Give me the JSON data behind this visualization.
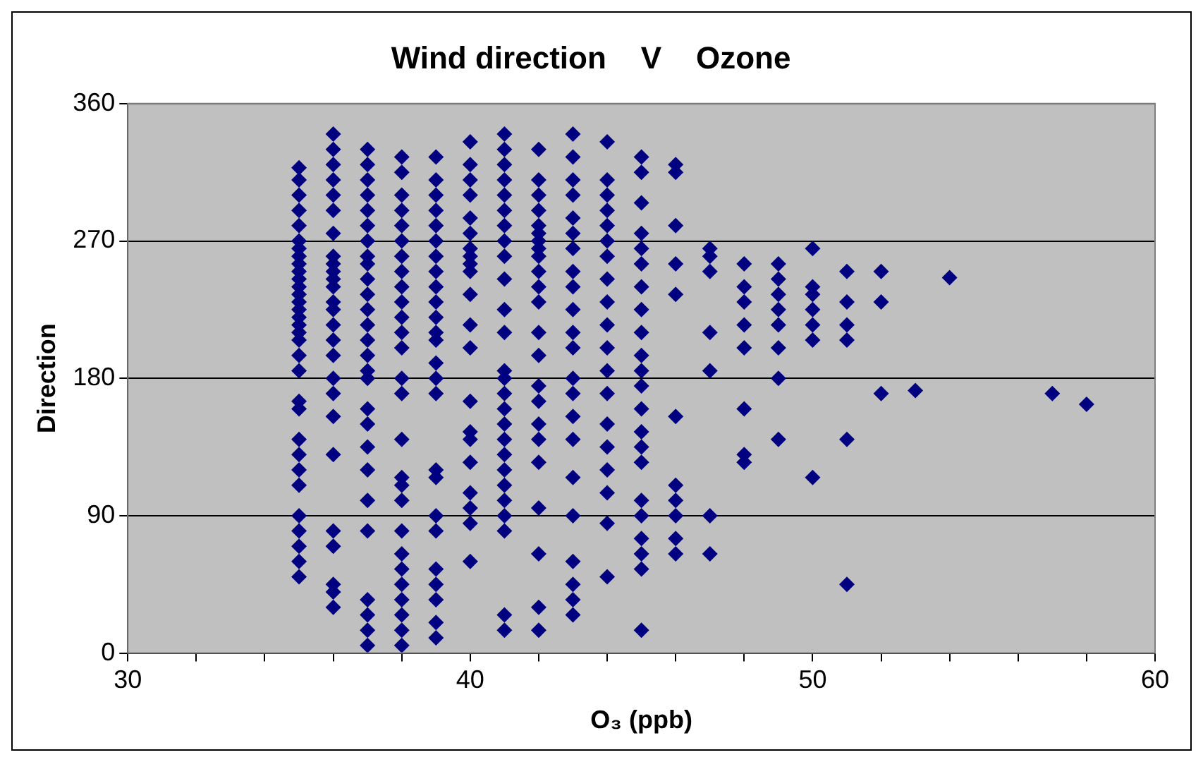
{
  "chart_data": {
    "type": "scatter",
    "title": "Wind direction    V    Ozone",
    "xlabel": "O₃ (ppb)",
    "ylabel": "Direction",
    "xlim": [
      30,
      60
    ],
    "xticks": [
      30,
      {
        "value": 32,
        "label": null
      },
      {
        "value": 34,
        "label": null
      },
      {
        "value": 36,
        "label": null
      },
      {
        "value": 38,
        "label": null
      },
      40,
      {
        "value": 42,
        "label": null
      },
      {
        "value": 44,
        "label": null
      },
      {
        "value": 46,
        "label": null
      },
      {
        "value": 48,
        "label": null
      },
      50,
      {
        "value": 52,
        "label": null
      },
      {
        "value": 54,
        "label": null
      },
      {
        "value": 56,
        "label": null
      },
      {
        "value": 58,
        "label": null
      },
      60
    ],
    "ylim": [
      0,
      360
    ],
    "yticks": [
      0,
      90,
      180,
      270,
      360
    ],
    "grid": "y",
    "legend": false,
    "marker": "diamond",
    "series": [
      {
        "color": "#000080",
        "x": [
          35,
          35,
          35,
          35,
          35,
          35,
          35,
          35,
          35,
          35,
          35,
          35,
          35,
          35,
          35,
          35,
          35,
          35,
          35,
          35,
          35,
          35,
          35,
          35,
          35,
          35,
          35,
          35,
          35,
          35,
          35,
          35
        ],
        "values": [
          50,
          60,
          70,
          80,
          90,
          110,
          120,
          130,
          140,
          160,
          165,
          185,
          195,
          205,
          210,
          215,
          220,
          225,
          230,
          235,
          240,
          245,
          250,
          255,
          260,
          265,
          270,
          280,
          290,
          300,
          310,
          318
        ]
      },
      {
        "color": "#000080",
        "x": [
          36,
          36,
          36,
          36,
          36,
          36,
          36,
          36,
          36,
          36,
          36,
          36,
          36,
          36,
          36,
          36,
          36,
          36,
          36,
          36,
          36,
          36,
          36,
          36,
          36,
          36
        ],
        "values": [
          30,
          40,
          45,
          70,
          80,
          130,
          155,
          170,
          180,
          195,
          205,
          215,
          225,
          230,
          240,
          245,
          250,
          255,
          260,
          275,
          290,
          300,
          310,
          320,
          330,
          340
        ]
      },
      {
        "color": "#000080",
        "x": [
          37,
          37,
          37,
          37,
          37,
          37,
          37,
          37,
          37,
          37,
          37,
          37,
          37,
          37,
          37,
          37,
          37,
          37,
          37,
          37,
          37,
          37,
          37,
          37,
          37,
          37,
          37
        ],
        "values": [
          5,
          15,
          25,
          35,
          80,
          100,
          120,
          135,
          150,
          160,
          180,
          185,
          195,
          205,
          215,
          225,
          235,
          245,
          255,
          260,
          270,
          280,
          290,
          300,
          310,
          320,
          330
        ]
      },
      {
        "color": "#000080",
        "x": [
          38,
          38,
          38,
          38,
          38,
          38,
          38,
          38,
          38,
          38,
          38,
          38,
          38,
          38,
          38,
          38,
          38,
          38,
          38,
          38,
          38,
          38,
          38,
          38,
          38,
          38,
          38
        ],
        "values": [
          5,
          15,
          25,
          35,
          45,
          55,
          65,
          80,
          100,
          110,
          115,
          140,
          170,
          180,
          200,
          210,
          220,
          230,
          240,
          250,
          260,
          270,
          280,
          290,
          300,
          315,
          325
        ]
      },
      {
        "color": "#000080",
        "x": [
          39,
          39,
          39,
          39,
          39,
          39,
          39,
          39,
          39,
          39,
          39,
          39,
          39,
          39,
          39,
          39,
          39,
          39,
          39,
          39,
          39,
          39,
          39,
          39,
          39
        ],
        "values": [
          10,
          20,
          35,
          45,
          55,
          80,
          90,
          115,
          120,
          170,
          180,
          190,
          205,
          210,
          220,
          230,
          240,
          250,
          260,
          270,
          280,
          290,
          300,
          310,
          325
        ]
      },
      {
        "color": "#000080",
        "x": [
          40,
          40,
          40,
          40,
          40,
          40,
          40,
          40,
          40,
          40,
          40,
          40,
          40,
          40,
          40,
          40,
          40,
          40,
          40,
          40,
          40
        ],
        "values": [
          60,
          85,
          95,
          105,
          125,
          140,
          145,
          165,
          200,
          215,
          235,
          250,
          255,
          260,
          265,
          275,
          285,
          300,
          310,
          320,
          335
        ]
      },
      {
        "color": "#000080",
        "x": [
          41,
          41,
          41,
          41,
          41,
          41,
          41,
          41,
          41,
          41,
          41,
          41,
          41,
          41,
          41,
          41,
          41,
          41,
          41,
          41,
          41,
          41,
          41,
          41,
          41,
          41
        ],
        "values": [
          15,
          25,
          80,
          90,
          100,
          110,
          120,
          130,
          140,
          150,
          160,
          170,
          180,
          185,
          210,
          225,
          245,
          260,
          270,
          280,
          290,
          300,
          310,
          320,
          330,
          340
        ]
      },
      {
        "color": "#000080",
        "x": [
          42,
          42,
          42,
          42,
          42,
          42,
          42,
          42,
          42,
          42,
          42,
          42,
          42,
          42,
          42,
          42,
          42,
          42,
          42,
          42,
          42,
          42,
          42
        ],
        "values": [
          15,
          30,
          65,
          95,
          125,
          140,
          150,
          165,
          175,
          195,
          210,
          230,
          240,
          250,
          260,
          265,
          270,
          275,
          280,
          290,
          300,
          310,
          330
        ]
      },
      {
        "color": "#000080",
        "x": [
          43,
          43,
          43,
          43,
          43,
          43,
          43,
          43,
          43,
          43,
          43,
          43,
          43,
          43,
          43,
          43,
          43,
          43,
          43,
          43,
          43,
          43
        ],
        "values": [
          25,
          35,
          45,
          60,
          90,
          115,
          140,
          155,
          170,
          180,
          200,
          210,
          225,
          240,
          250,
          265,
          275,
          285,
          300,
          310,
          325,
          340
        ]
      },
      {
        "color": "#000080",
        "x": [
          44,
          44,
          44,
          44,
          44,
          44,
          44,
          44,
          44,
          44,
          44,
          44,
          44,
          44,
          44,
          44,
          44,
          44,
          44
        ],
        "values": [
          50,
          85,
          105,
          120,
          135,
          150,
          170,
          185,
          200,
          215,
          230,
          245,
          260,
          270,
          280,
          290,
          300,
          310,
          335
        ]
      },
      {
        "color": "#000080",
        "x": [
          45,
          45,
          45,
          45,
          45,
          45,
          45,
          45,
          45,
          45,
          45,
          45,
          45,
          45,
          45,
          45,
          45,
          45,
          45,
          45,
          45,
          45
        ],
        "values": [
          15,
          55,
          65,
          75,
          90,
          100,
          125,
          135,
          145,
          160,
          175,
          185,
          195,
          210,
          225,
          240,
          255,
          265,
          275,
          295,
          315,
          325
        ]
      },
      {
        "color": "#000080",
        "x": [
          46,
          46,
          46,
          46,
          46,
          46,
          46,
          46,
          46,
          46,
          46
        ],
        "values": [
          65,
          75,
          90,
          100,
          110,
          155,
          235,
          255,
          280,
          315,
          320
        ]
      },
      {
        "color": "#000080",
        "x": [
          47,
          47,
          47,
          47,
          47,
          47,
          47
        ],
        "values": [
          65,
          90,
          185,
          210,
          250,
          260,
          265
        ]
      },
      {
        "color": "#000080",
        "x": [
          48,
          48,
          48,
          48,
          48,
          48,
          48,
          48
        ],
        "values": [
          125,
          130,
          160,
          200,
          215,
          230,
          240,
          255
        ]
      },
      {
        "color": "#000080",
        "x": [
          49,
          49,
          49,
          49,
          49,
          49,
          49,
          49
        ],
        "values": [
          140,
          180,
          200,
          215,
          225,
          235,
          245,
          255
        ]
      },
      {
        "color": "#000080",
        "x": [
          50,
          50,
          50,
          50,
          50,
          50,
          50
        ],
        "values": [
          115,
          205,
          215,
          225,
          235,
          240,
          265
        ]
      },
      {
        "color": "#000080",
        "x": [
          51,
          51,
          51,
          51,
          51,
          51
        ],
        "values": [
          45,
          140,
          205,
          215,
          230,
          250
        ]
      },
      {
        "color": "#000080",
        "x": [
          52,
          52,
          52
        ],
        "values": [
          170,
          230,
          250
        ]
      },
      {
        "color": "#000080",
        "x": [
          53
        ],
        "values": [
          172
        ]
      },
      {
        "color": "#000080",
        "x": [
          54
        ],
        "values": [
          246
        ]
      },
      {
        "color": "#000080",
        "x": [
          57,
          58
        ],
        "values": [
          170,
          163
        ]
      }
    ]
  }
}
